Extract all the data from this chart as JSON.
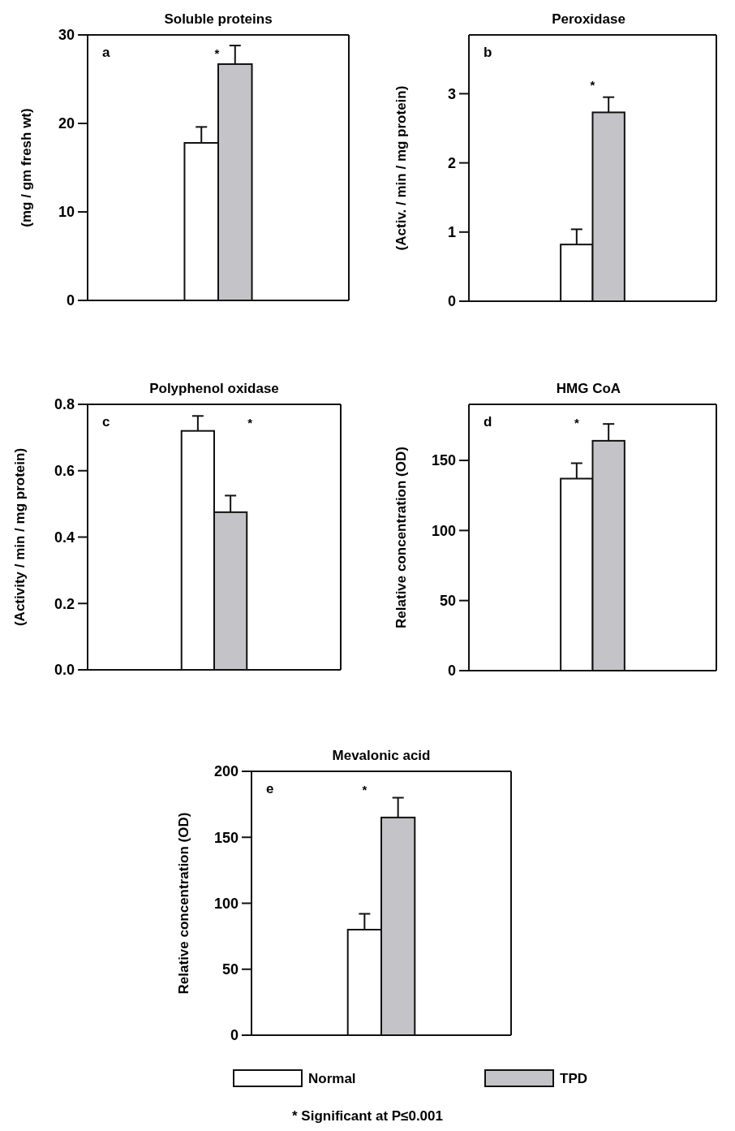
{
  "chart_data": [
    {
      "type": "bar",
      "title": "Soluble proteins",
      "ylabel": "(mg / gm fresh wt)",
      "categories": [
        null
      ],
      "ylim": [
        0,
        30
      ],
      "yticks": [
        0,
        10,
        20,
        30
      ],
      "annotations": [
        "a",
        "*"
      ],
      "series": [
        {
          "color": "#ffffff",
          "values": [
            17.8
          ],
          "errors": [
            1.8
          ]
        },
        {
          "color": "#c4c4c8",
          "values": [
            26.7
          ],
          "errors": [
            2.1
          ]
        }
      ]
    },
    {
      "type": "bar",
      "title": "Peroxidase",
      "ylabel": "(Activ. / min / mg protein)",
      "categories": [
        null
      ],
      "ylim": [
        0,
        3.85
      ],
      "yticks": [
        0,
        1,
        2,
        3
      ],
      "annotations": [
        "b",
        "*"
      ],
      "series": [
        {
          "color": "#ffffff",
          "values": [
            0.82
          ],
          "errors": [
            0.22
          ]
        },
        {
          "color": "#c4c4c8",
          "values": [
            2.73
          ],
          "errors": [
            0.22
          ]
        }
      ]
    },
    {
      "type": "bar",
      "title": "Polyphenol oxidase",
      "ylabel": "(Activity / min / mg protein)",
      "categories": [
        null
      ],
      "ylim": [
        0,
        0.8
      ],
      "yticks": [
        {
          "value": 0,
          "label": "0.0"
        },
        {
          "value": 0.2,
          "label": "0.2"
        },
        {
          "value": 0.4,
          "label": "0.4"
        },
        {
          "value": 0.6,
          "label": "0.6"
        },
        {
          "value": 0.8,
          "label": "0.8"
        }
      ],
      "annotations": [
        "c",
        "*"
      ],
      "series": [
        {
          "color": "#ffffff",
          "values": [
            0.72
          ],
          "errors": [
            0.045
          ]
        },
        {
          "color": "#c4c4c8",
          "values": [
            0.475
          ],
          "errors": [
            0.05
          ]
        }
      ]
    },
    {
      "type": "bar",
      "title": "HMG CoA",
      "ylabel": "Relative concentration (OD)",
      "categories": [
        null
      ],
      "ylim": [
        0,
        190
      ],
      "yticks": [
        0,
        50,
        100,
        150
      ],
      "annotations": [
        "d",
        "*"
      ],
      "series": [
        {
          "color": "#ffffff",
          "values": [
            137
          ],
          "errors": [
            11
          ]
        },
        {
          "color": "#c4c4c8",
          "values": [
            164
          ],
          "errors": [
            12
          ]
        }
      ]
    },
    {
      "type": "bar",
      "title": "Mevalonic acid",
      "ylabel": "Relative concentration (OD)",
      "categories": [
        null
      ],
      "ylim": [
        0,
        200
      ],
      "yticks": [
        0,
        50,
        100,
        150,
        200
      ],
      "legend": "bottom",
      "annotations": [
        "e",
        "*",
        "* Significant at P≤0.001"
      ],
      "series": [
        {
          "name": "Normal",
          "color": "#ffffff",
          "values": [
            80
          ],
          "errors": [
            12
          ]
        },
        {
          "name": "TPD",
          "color": "#c4c4c8",
          "values": [
            165
          ],
          "errors": [
            15
          ]
        }
      ]
    }
  ]
}
